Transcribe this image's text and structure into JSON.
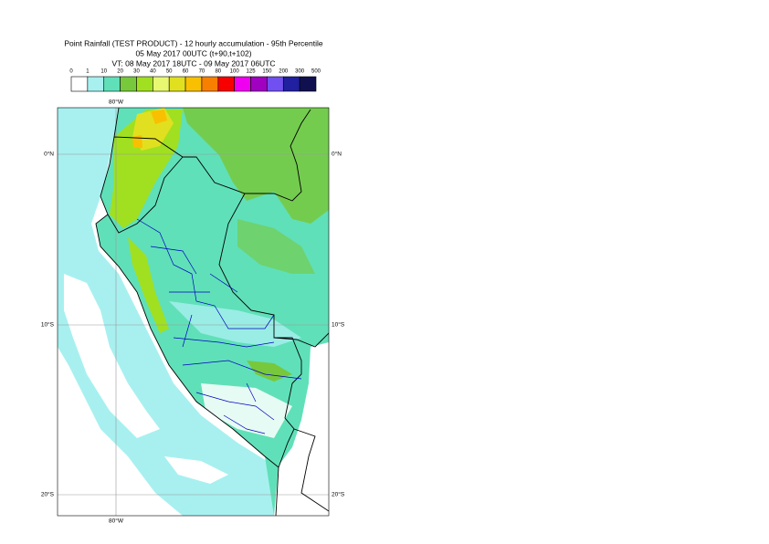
{
  "header": {
    "title": "Point Rainfall (TEST PRODUCT) - 12 hourly accumulation - 95th Percentile",
    "run": "05 May 2017 00UTC (t+90,t+102)",
    "validity": "VT: 08 May 2017 18UTC - 09 May 2017 06UTC"
  },
  "legend": {
    "labels": [
      "0",
      "1",
      "10",
      "20",
      "30",
      "40",
      "50",
      "60",
      "70",
      "80",
      "100",
      "125",
      "150",
      "200",
      "300",
      "500"
    ],
    "colors": [
      "#ffffff",
      "#a8f0f0",
      "#60e0b8",
      "#78c83c",
      "#a0e020",
      "#e8f870",
      "#e0e020",
      "#f8c000",
      "#f88000",
      "#f80000",
      "#f000f0",
      "#a000c0",
      "#7050f0",
      "#2020a0",
      "#101050"
    ]
  },
  "map": {
    "lon_top": "80°W",
    "lon_bottom": "80°W",
    "lat_left": [
      "0°N",
      "10°S",
      "20°S"
    ],
    "lat_right": [
      "0°N",
      "10°S",
      "20°S"
    ]
  }
}
